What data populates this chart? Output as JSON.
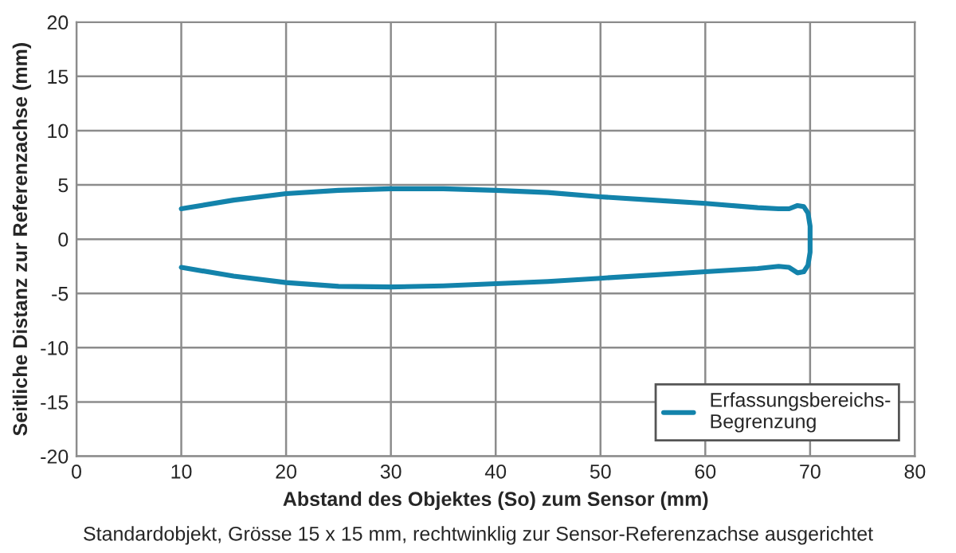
{
  "chart_data": {
    "type": "line",
    "xlabel": "Abstand des Objektes (So) zum Sensor (mm)",
    "ylabel": "Seitliche Distanz zur Referenzachse (mm)",
    "annotations": [
      "Standardobjekt, Grösse 15 x 15 mm, rechtwinklig zur Sensor-Referenzachse ausgerichtet"
    ],
    "series": [
      {
        "name": "Erfassungsbereichs-\nBegrenzung",
        "color": "#1383ab",
        "x": [
          10,
          15,
          20,
          25,
          30,
          35,
          40,
          45,
          50,
          55,
          60,
          65,
          67,
          68,
          68.8,
          69.4,
          69.8,
          70,
          70,
          70,
          69.8,
          69.4,
          68.8,
          68,
          67,
          65,
          60,
          55,
          50,
          45,
          40,
          35,
          30,
          25,
          20,
          15,
          10
        ],
        "values": [
          2.8,
          3.6,
          4.2,
          4.5,
          4.65,
          4.65,
          4.5,
          4.3,
          3.9,
          3.6,
          3.3,
          2.9,
          2.8,
          2.8,
          3.1,
          3.0,
          2.4,
          1.2,
          0,
          -1.2,
          -2.4,
          -3.0,
          -3.1,
          -2.6,
          -2.5,
          -2.7,
          -3.0,
          -3.3,
          -3.6,
          -3.9,
          -4.1,
          -4.3,
          -4.4,
          -4.35,
          -4.0,
          -3.4,
          -2.6
        ]
      }
    ],
    "xlim": [
      0,
      80
    ],
    "xticks": [
      0,
      10,
      20,
      30,
      40,
      50,
      60,
      70,
      80
    ],
    "ylim": [
      -20,
      20
    ],
    "yticks": [
      -20,
      -15,
      -10,
      -5,
      0,
      5,
      10,
      15,
      20
    ],
    "grid": true,
    "legend": "bottom right",
    "line_style": "solid",
    "marker": "none"
  }
}
